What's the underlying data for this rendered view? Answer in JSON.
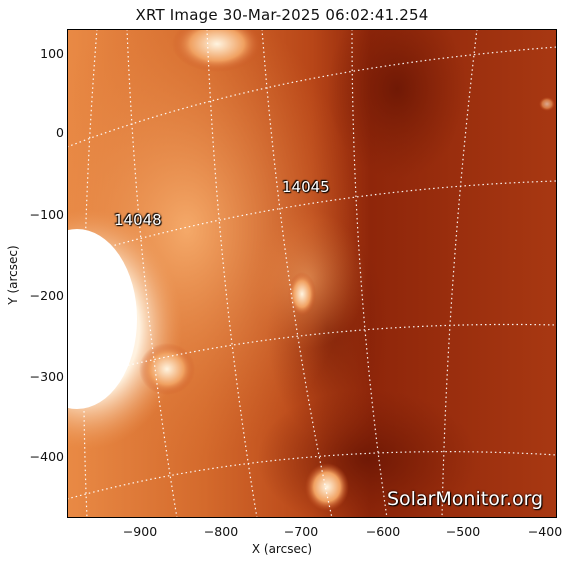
{
  "title": "XRT Image 30-Mar-2025 06:02:41.254",
  "x_axis": {
    "label": "X (arcsec)",
    "ticks": [
      "−900",
      "−800",
      "−700",
      "−600",
      "−500",
      "−400"
    ],
    "range": [
      -990,
      -380
    ]
  },
  "y_axis": {
    "label": "Y (arcsec)",
    "ticks": [
      "100",
      "0",
      "−100",
      "−200",
      "−300",
      "−400"
    ],
    "range": [
      -475,
      128
    ]
  },
  "regions": [
    {
      "label": "14048"
    },
    {
      "label": "14045"
    }
  ],
  "watermark": "SolarMonitor.org",
  "colors": {
    "background_dark": "#8a2106",
    "mid": "#c8521a",
    "bright": "#ffffff",
    "grid": "#ffffff"
  }
}
